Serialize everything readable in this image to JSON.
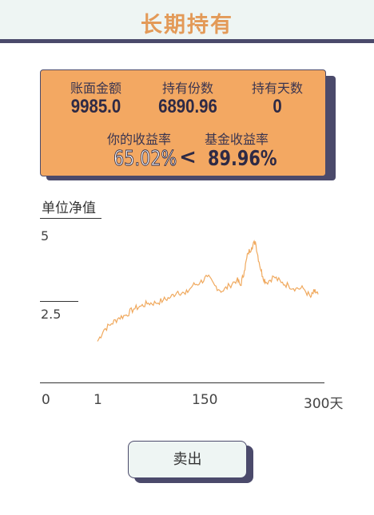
{
  "header": {
    "title": "长期持有"
  },
  "stats": {
    "balance_label": "账面金额",
    "balance_value": "9985.0",
    "shares_label": "持有份数",
    "shares_value": "6890.96",
    "days_label": "持有天数",
    "days_value": "0",
    "user_rate_label": "你的收益率",
    "fund_rate_label": "基金收益率",
    "user_rate_value": "65.02%",
    "compare_symbol": "<",
    "fund_rate_value": "89.96%"
  },
  "colors": {
    "accent": "#f3a862",
    "title": "#e39a58",
    "dark": "#4b4a6b",
    "line": "#f0a95e"
  },
  "chart_data": {
    "type": "line",
    "title": "单位净值",
    "xlabel": "",
    "ylabel": "",
    "y_ticks": [
      "5",
      "2.5"
    ],
    "x_ticks": [
      "0",
      "1",
      "150",
      "300天"
    ],
    "ylim": [
      0,
      5
    ],
    "xlim": [
      0,
      300
    ],
    "series": [
      {
        "x": [
          1,
          10,
          20,
          30,
          40,
          50,
          60,
          70,
          80,
          90,
          100,
          110,
          120,
          130,
          140,
          150,
          160,
          170,
          180,
          190,
          195,
          200,
          205,
          210,
          215,
          220,
          225,
          230,
          240,
          250,
          260,
          270,
          280,
          290,
          295,
          300
        ],
        "values": [
          1.4,
          1.8,
          2.0,
          2.2,
          2.3,
          2.5,
          2.6,
          2.7,
          2.7,
          2.8,
          2.9,
          3.1,
          3.0,
          3.3,
          3.4,
          3.6,
          3.3,
          3.1,
          3.3,
          3.5,
          3.3,
          3.8,
          4.4,
          4.6,
          4.8,
          4.1,
          3.6,
          3.4,
          3.6,
          3.4,
          3.3,
          3.2,
          3.2,
          2.9,
          3.1,
          3.0
        ]
      }
    ]
  },
  "actions": {
    "sell_label": "卖出"
  }
}
